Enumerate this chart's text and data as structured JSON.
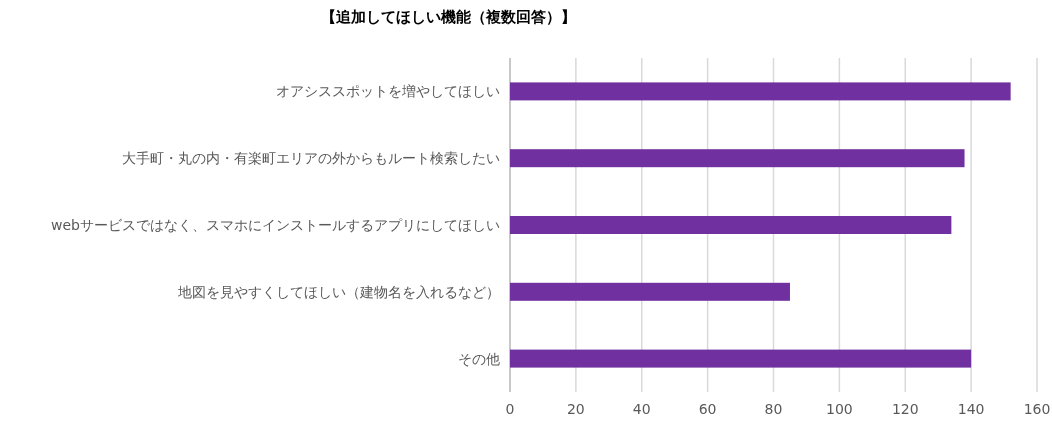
{
  "chart_data": {
    "type": "bar",
    "orientation": "horizontal",
    "title": "【追加してほしい機能（複数回答）】",
    "categories": [
      "オアシススポットを増やしてほしい",
      "大手町・丸の内・有楽町エリアの外からもルート検索したい",
      "webサービスではなく、スマホにインストールするアプリにしてほしい",
      "地図を見やすくしてほしい（建物名を入れるなど）",
      "その他"
    ],
    "values": [
      152,
      138,
      134,
      85,
      140
    ],
    "color": "#7030a0",
    "xlim": [
      0,
      160
    ],
    "xticks": [
      0,
      20,
      40,
      60,
      80,
      100,
      120,
      140,
      160
    ],
    "grid": "x"
  }
}
